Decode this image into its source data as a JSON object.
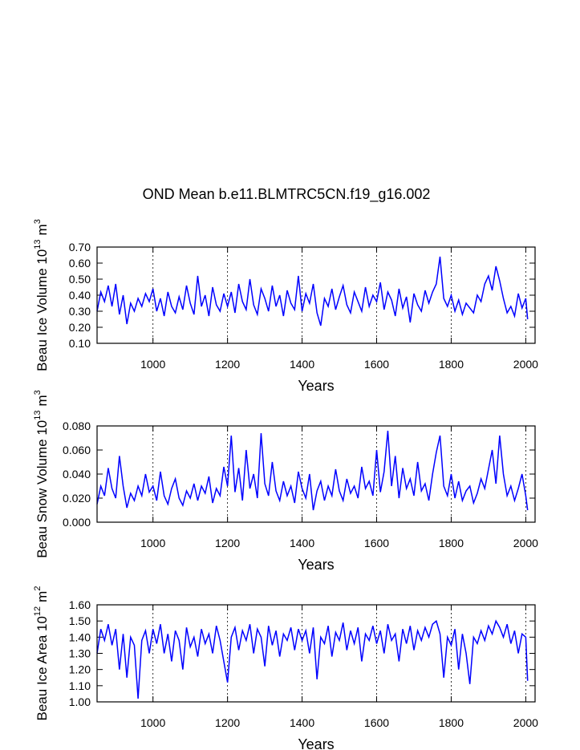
{
  "title": "OND Mean b.e11.BLMTRC5CN.f19_g16.002",
  "chart_data": [
    {
      "type": "line",
      "xlabel": "Years",
      "ylabel": {
        "base": "Beau Ice Volume 10",
        "exponent": "13",
        "unit": "m",
        "unit_exponent": "3"
      },
      "xlim": [
        850,
        2025
      ],
      "xticks": [
        1000,
        1200,
        1400,
        1600,
        1800,
        2000
      ],
      "ylim": [
        0.1,
        0.7
      ],
      "yticks": [
        {
          "value": 0.1,
          "label": "0.10"
        },
        {
          "value": 0.2,
          "label": "0.20"
        },
        {
          "value": 0.3,
          "label": "0.30"
        },
        {
          "value": 0.4,
          "label": "0.40"
        },
        {
          "value": 0.5,
          "label": "0.50"
        },
        {
          "value": 0.6,
          "label": "0.60"
        },
        {
          "value": 0.7,
          "label": "0.70"
        }
      ],
      "grid": true,
      "color": "#0000ff",
      "x": [
        850,
        860,
        870,
        880,
        890,
        900,
        910,
        920,
        930,
        940,
        950,
        960,
        970,
        980,
        990,
        1000,
        1010,
        1020,
        1030,
        1040,
        1050,
        1060,
        1070,
        1080,
        1090,
        1100,
        1110,
        1120,
        1130,
        1140,
        1150,
        1160,
        1170,
        1180,
        1190,
        1200,
        1210,
        1220,
        1230,
        1240,
        1250,
        1260,
        1270,
        1280,
        1290,
        1300,
        1310,
        1320,
        1330,
        1340,
        1350,
        1360,
        1370,
        1380,
        1390,
        1400,
        1410,
        1420,
        1430,
        1440,
        1450,
        1460,
        1470,
        1480,
        1490,
        1500,
        1510,
        1520,
        1530,
        1540,
        1550,
        1560,
        1570,
        1580,
        1590,
        1600,
        1610,
        1620,
        1630,
        1640,
        1650,
        1660,
        1670,
        1680,
        1690,
        1700,
        1710,
        1720,
        1730,
        1740,
        1750,
        1760,
        1770,
        1780,
        1790,
        1800,
        1810,
        1820,
        1830,
        1840,
        1850,
        1860,
        1870,
        1880,
        1890,
        1900,
        1910,
        1920,
        1930,
        1940,
        1950,
        1960,
        1970,
        1980,
        1990,
        2000,
        2005
      ],
      "values": [
        0.3,
        0.42,
        0.36,
        0.46,
        0.33,
        0.47,
        0.28,
        0.4,
        0.22,
        0.35,
        0.3,
        0.38,
        0.33,
        0.41,
        0.36,
        0.44,
        0.3,
        0.38,
        0.27,
        0.42,
        0.33,
        0.29,
        0.39,
        0.31,
        0.46,
        0.35,
        0.28,
        0.52,
        0.33,
        0.4,
        0.27,
        0.45,
        0.34,
        0.3,
        0.41,
        0.33,
        0.42,
        0.29,
        0.47,
        0.36,
        0.31,
        0.5,
        0.34,
        0.28,
        0.44,
        0.38,
        0.3,
        0.46,
        0.33,
        0.4,
        0.27,
        0.43,
        0.35,
        0.31,
        0.52,
        0.3,
        0.41,
        0.35,
        0.47,
        0.29,
        0.21,
        0.38,
        0.33,
        0.44,
        0.31,
        0.39,
        0.46,
        0.34,
        0.29,
        0.42,
        0.36,
        0.3,
        0.45,
        0.33,
        0.4,
        0.36,
        0.48,
        0.31,
        0.42,
        0.37,
        0.27,
        0.44,
        0.32,
        0.39,
        0.23,
        0.41,
        0.34,
        0.3,
        0.43,
        0.35,
        0.42,
        0.47,
        0.64,
        0.38,
        0.33,
        0.4,
        0.3,
        0.37,
        0.28,
        0.35,
        0.32,
        0.29,
        0.4,
        0.36,
        0.47,
        0.52,
        0.43,
        0.58,
        0.49,
        0.38,
        0.29,
        0.33,
        0.27,
        0.41,
        0.32,
        0.38,
        0.25
      ]
    },
    {
      "type": "line",
      "xlabel": "Years",
      "ylabel": {
        "base": "Beau Snow Volume 10",
        "exponent": "13",
        "unit": "m",
        "unit_exponent": "3"
      },
      "xlim": [
        850,
        2025
      ],
      "xticks": [
        1000,
        1200,
        1400,
        1600,
        1800,
        2000
      ],
      "ylim": [
        0,
        0.08
      ],
      "yticks": [
        {
          "value": 0,
          "label": "0.000"
        },
        {
          "value": 0.02,
          "label": "0.020"
        },
        {
          "value": 0.04,
          "label": "0.040"
        },
        {
          "value": 0.06,
          "label": "0.060"
        },
        {
          "value": 0.08,
          "label": "0.080"
        }
      ],
      "grid": true,
      "color": "#0000ff",
      "x": [
        850,
        860,
        870,
        880,
        890,
        900,
        910,
        920,
        930,
        940,
        950,
        960,
        970,
        980,
        990,
        1000,
        1010,
        1020,
        1030,
        1040,
        1050,
        1060,
        1070,
        1080,
        1090,
        1100,
        1110,
        1120,
        1130,
        1140,
        1150,
        1160,
        1170,
        1180,
        1190,
        1200,
        1210,
        1220,
        1230,
        1240,
        1250,
        1260,
        1270,
        1280,
        1290,
        1300,
        1310,
        1320,
        1330,
        1340,
        1350,
        1360,
        1370,
        1380,
        1390,
        1400,
        1410,
        1420,
        1430,
        1440,
        1450,
        1460,
        1470,
        1480,
        1490,
        1500,
        1510,
        1520,
        1530,
        1540,
        1550,
        1560,
        1570,
        1580,
        1590,
        1600,
        1610,
        1620,
        1630,
        1640,
        1650,
        1660,
        1670,
        1680,
        1690,
        1700,
        1710,
        1720,
        1730,
        1740,
        1750,
        1760,
        1770,
        1780,
        1790,
        1800,
        1810,
        1820,
        1830,
        1840,
        1850,
        1860,
        1870,
        1880,
        1890,
        1900,
        1910,
        1920,
        1930,
        1940,
        1950,
        1960,
        1970,
        1980,
        1990,
        2000,
        2005
      ],
      "values": [
        0.015,
        0.03,
        0.022,
        0.045,
        0.028,
        0.02,
        0.055,
        0.03,
        0.012,
        0.024,
        0.018,
        0.03,
        0.022,
        0.04,
        0.025,
        0.03,
        0.018,
        0.042,
        0.022,
        0.015,
        0.028,
        0.036,
        0.02,
        0.014,
        0.026,
        0.02,
        0.032,
        0.018,
        0.03,
        0.024,
        0.038,
        0.016,
        0.028,
        0.022,
        0.046,
        0.03,
        0.072,
        0.025,
        0.045,
        0.018,
        0.06,
        0.028,
        0.04,
        0.02,
        0.074,
        0.032,
        0.022,
        0.05,
        0.026,
        0.018,
        0.034,
        0.022,
        0.03,
        0.016,
        0.042,
        0.028,
        0.02,
        0.04,
        0.01,
        0.026,
        0.034,
        0.018,
        0.03,
        0.022,
        0.044,
        0.026,
        0.018,
        0.036,
        0.024,
        0.03,
        0.02,
        0.046,
        0.028,
        0.034,
        0.022,
        0.06,
        0.025,
        0.042,
        0.076,
        0.03,
        0.055,
        0.02,
        0.045,
        0.028,
        0.036,
        0.022,
        0.05,
        0.026,
        0.032,
        0.018,
        0.04,
        0.058,
        0.072,
        0.03,
        0.022,
        0.04,
        0.02,
        0.034,
        0.018,
        0.026,
        0.03,
        0.016,
        0.024,
        0.036,
        0.028,
        0.044,
        0.06,
        0.032,
        0.072,
        0.04,
        0.022,
        0.03,
        0.018,
        0.028,
        0.04,
        0.022,
        0.01
      ]
    },
    {
      "type": "line",
      "xlabel": "Years",
      "ylabel": {
        "base": "Beau Ice Area 10",
        "exponent": "12",
        "unit": "m",
        "unit_exponent": "2"
      },
      "xlim": [
        850,
        2025
      ],
      "xticks": [
        1000,
        1200,
        1400,
        1600,
        1800,
        2000
      ],
      "ylim": [
        1.0,
        1.6
      ],
      "yticks": [
        {
          "value": 1.0,
          "label": "1.00"
        },
        {
          "value": 1.1,
          "label": "1.10"
        },
        {
          "value": 1.2,
          "label": "1.20"
        },
        {
          "value": 1.3,
          "label": "1.30"
        },
        {
          "value": 1.4,
          "label": "1.40"
        },
        {
          "value": 1.5,
          "label": "1.50"
        },
        {
          "value": 1.6,
          "label": "1.60"
        }
      ],
      "grid": true,
      "color": "#0000ff",
      "x": [
        850,
        860,
        870,
        880,
        890,
        900,
        910,
        920,
        930,
        940,
        950,
        960,
        970,
        980,
        990,
        1000,
        1010,
        1020,
        1030,
        1040,
        1050,
        1060,
        1070,
        1080,
        1090,
        1100,
        1110,
        1120,
        1130,
        1140,
        1150,
        1160,
        1170,
        1180,
        1190,
        1200,
        1210,
        1220,
        1230,
        1240,
        1250,
        1260,
        1270,
        1280,
        1290,
        1300,
        1310,
        1320,
        1330,
        1340,
        1350,
        1360,
        1370,
        1380,
        1390,
        1400,
        1410,
        1420,
        1430,
        1440,
        1450,
        1460,
        1470,
        1480,
        1490,
        1500,
        1510,
        1520,
        1530,
        1540,
        1550,
        1560,
        1570,
        1580,
        1590,
        1600,
        1610,
        1620,
        1630,
        1640,
        1650,
        1660,
        1670,
        1680,
        1690,
        1700,
        1710,
        1720,
        1730,
        1740,
        1750,
        1760,
        1770,
        1780,
        1790,
        1800,
        1810,
        1820,
        1830,
        1840,
        1850,
        1860,
        1870,
        1880,
        1890,
        1900,
        1910,
        1920,
        1930,
        1940,
        1950,
        1960,
        1970,
        1980,
        1990,
        2000,
        2005
      ],
      "values": [
        1.3,
        1.45,
        1.38,
        1.48,
        1.35,
        1.45,
        1.2,
        1.42,
        1.15,
        1.4,
        1.35,
        1.02,
        1.38,
        1.44,
        1.3,
        1.45,
        1.36,
        1.48,
        1.3,
        1.42,
        1.25,
        1.44,
        1.38,
        1.2,
        1.46,
        1.34,
        1.4,
        1.28,
        1.45,
        1.36,
        1.42,
        1.3,
        1.47,
        1.38,
        1.25,
        1.12,
        1.4,
        1.46,
        1.32,
        1.44,
        1.38,
        1.48,
        1.3,
        1.45,
        1.4,
        1.22,
        1.47,
        1.35,
        1.44,
        1.28,
        1.42,
        1.38,
        1.46,
        1.32,
        1.45,
        1.38,
        1.44,
        1.3,
        1.46,
        1.14,
        1.4,
        1.36,
        1.47,
        1.28,
        1.43,
        1.38,
        1.49,
        1.32,
        1.44,
        1.36,
        1.46,
        1.25,
        1.42,
        1.38,
        1.47,
        1.36,
        1.44,
        1.3,
        1.48,
        1.38,
        1.42,
        1.25,
        1.45,
        1.36,
        1.47,
        1.32,
        1.44,
        1.38,
        1.46,
        1.4,
        1.48,
        1.5,
        1.42,
        1.15,
        1.4,
        1.35,
        1.45,
        1.2,
        1.42,
        1.3,
        1.11,
        1.4,
        1.36,
        1.44,
        1.38,
        1.47,
        1.42,
        1.5,
        1.46,
        1.4,
        1.48,
        1.36,
        1.44,
        1.3,
        1.42,
        1.4,
        1.13
      ]
    }
  ]
}
